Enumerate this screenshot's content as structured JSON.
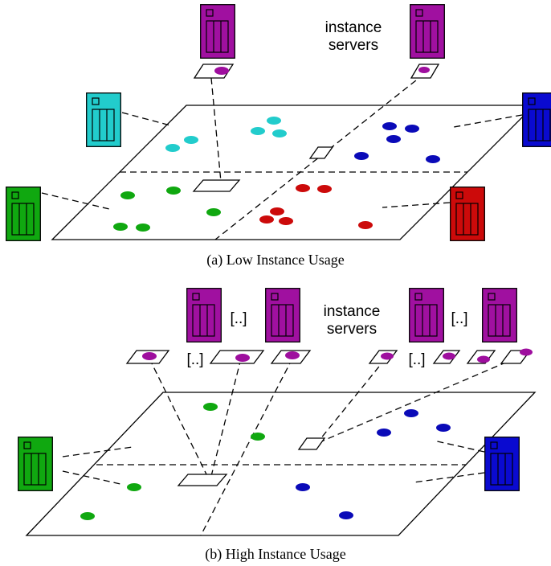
{
  "panels": [
    {
      "caption": "(a) Low Instance Usage",
      "label": [
        "instance",
        "servers"
      ]
    },
    {
      "caption": "(b) High Instance Usage",
      "label": [
        "instance",
        "servers"
      ],
      "ellipses": [
        "[..]",
        "[..]",
        "[..]",
        "[..]"
      ]
    }
  ]
}
